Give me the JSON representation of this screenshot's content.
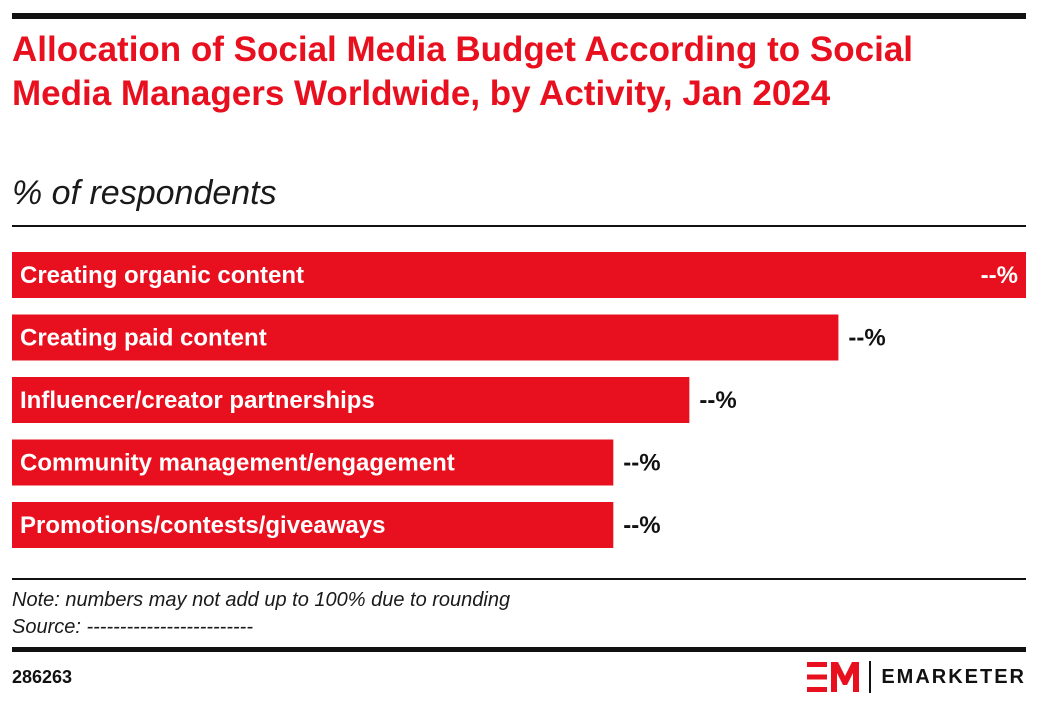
{
  "header": {
    "title": "Allocation of Social Media Budget According to Social Media Managers Worldwide, by Activity, Jan 2024",
    "subtitle": "% of respondents"
  },
  "footer": {
    "note": "Note: numbers may not add up to 100% due to rounding",
    "source": "Source: -------------------------",
    "chart_id": "286263",
    "brand_name": "EMARKETER",
    "brand_logo": "EM"
  },
  "colors": {
    "bar": "#e8101f",
    "title": "#e8101f",
    "text": "#111111"
  },
  "chart_data": {
    "type": "bar",
    "orientation": "horizontal",
    "categories": [
      "Creating organic content",
      "Creating paid content",
      "Influencer/creator partnerships",
      "Community management/engagement",
      "Promotions/contests/giveaways"
    ],
    "values": [
      100,
      81.5,
      66.8,
      59.3,
      59.3
    ],
    "value_labels": [
      "--%",
      "--%",
      "--%",
      "--%",
      "--%"
    ],
    "xlim": [
      0,
      100
    ],
    "grid": false,
    "legend": "none"
  }
}
